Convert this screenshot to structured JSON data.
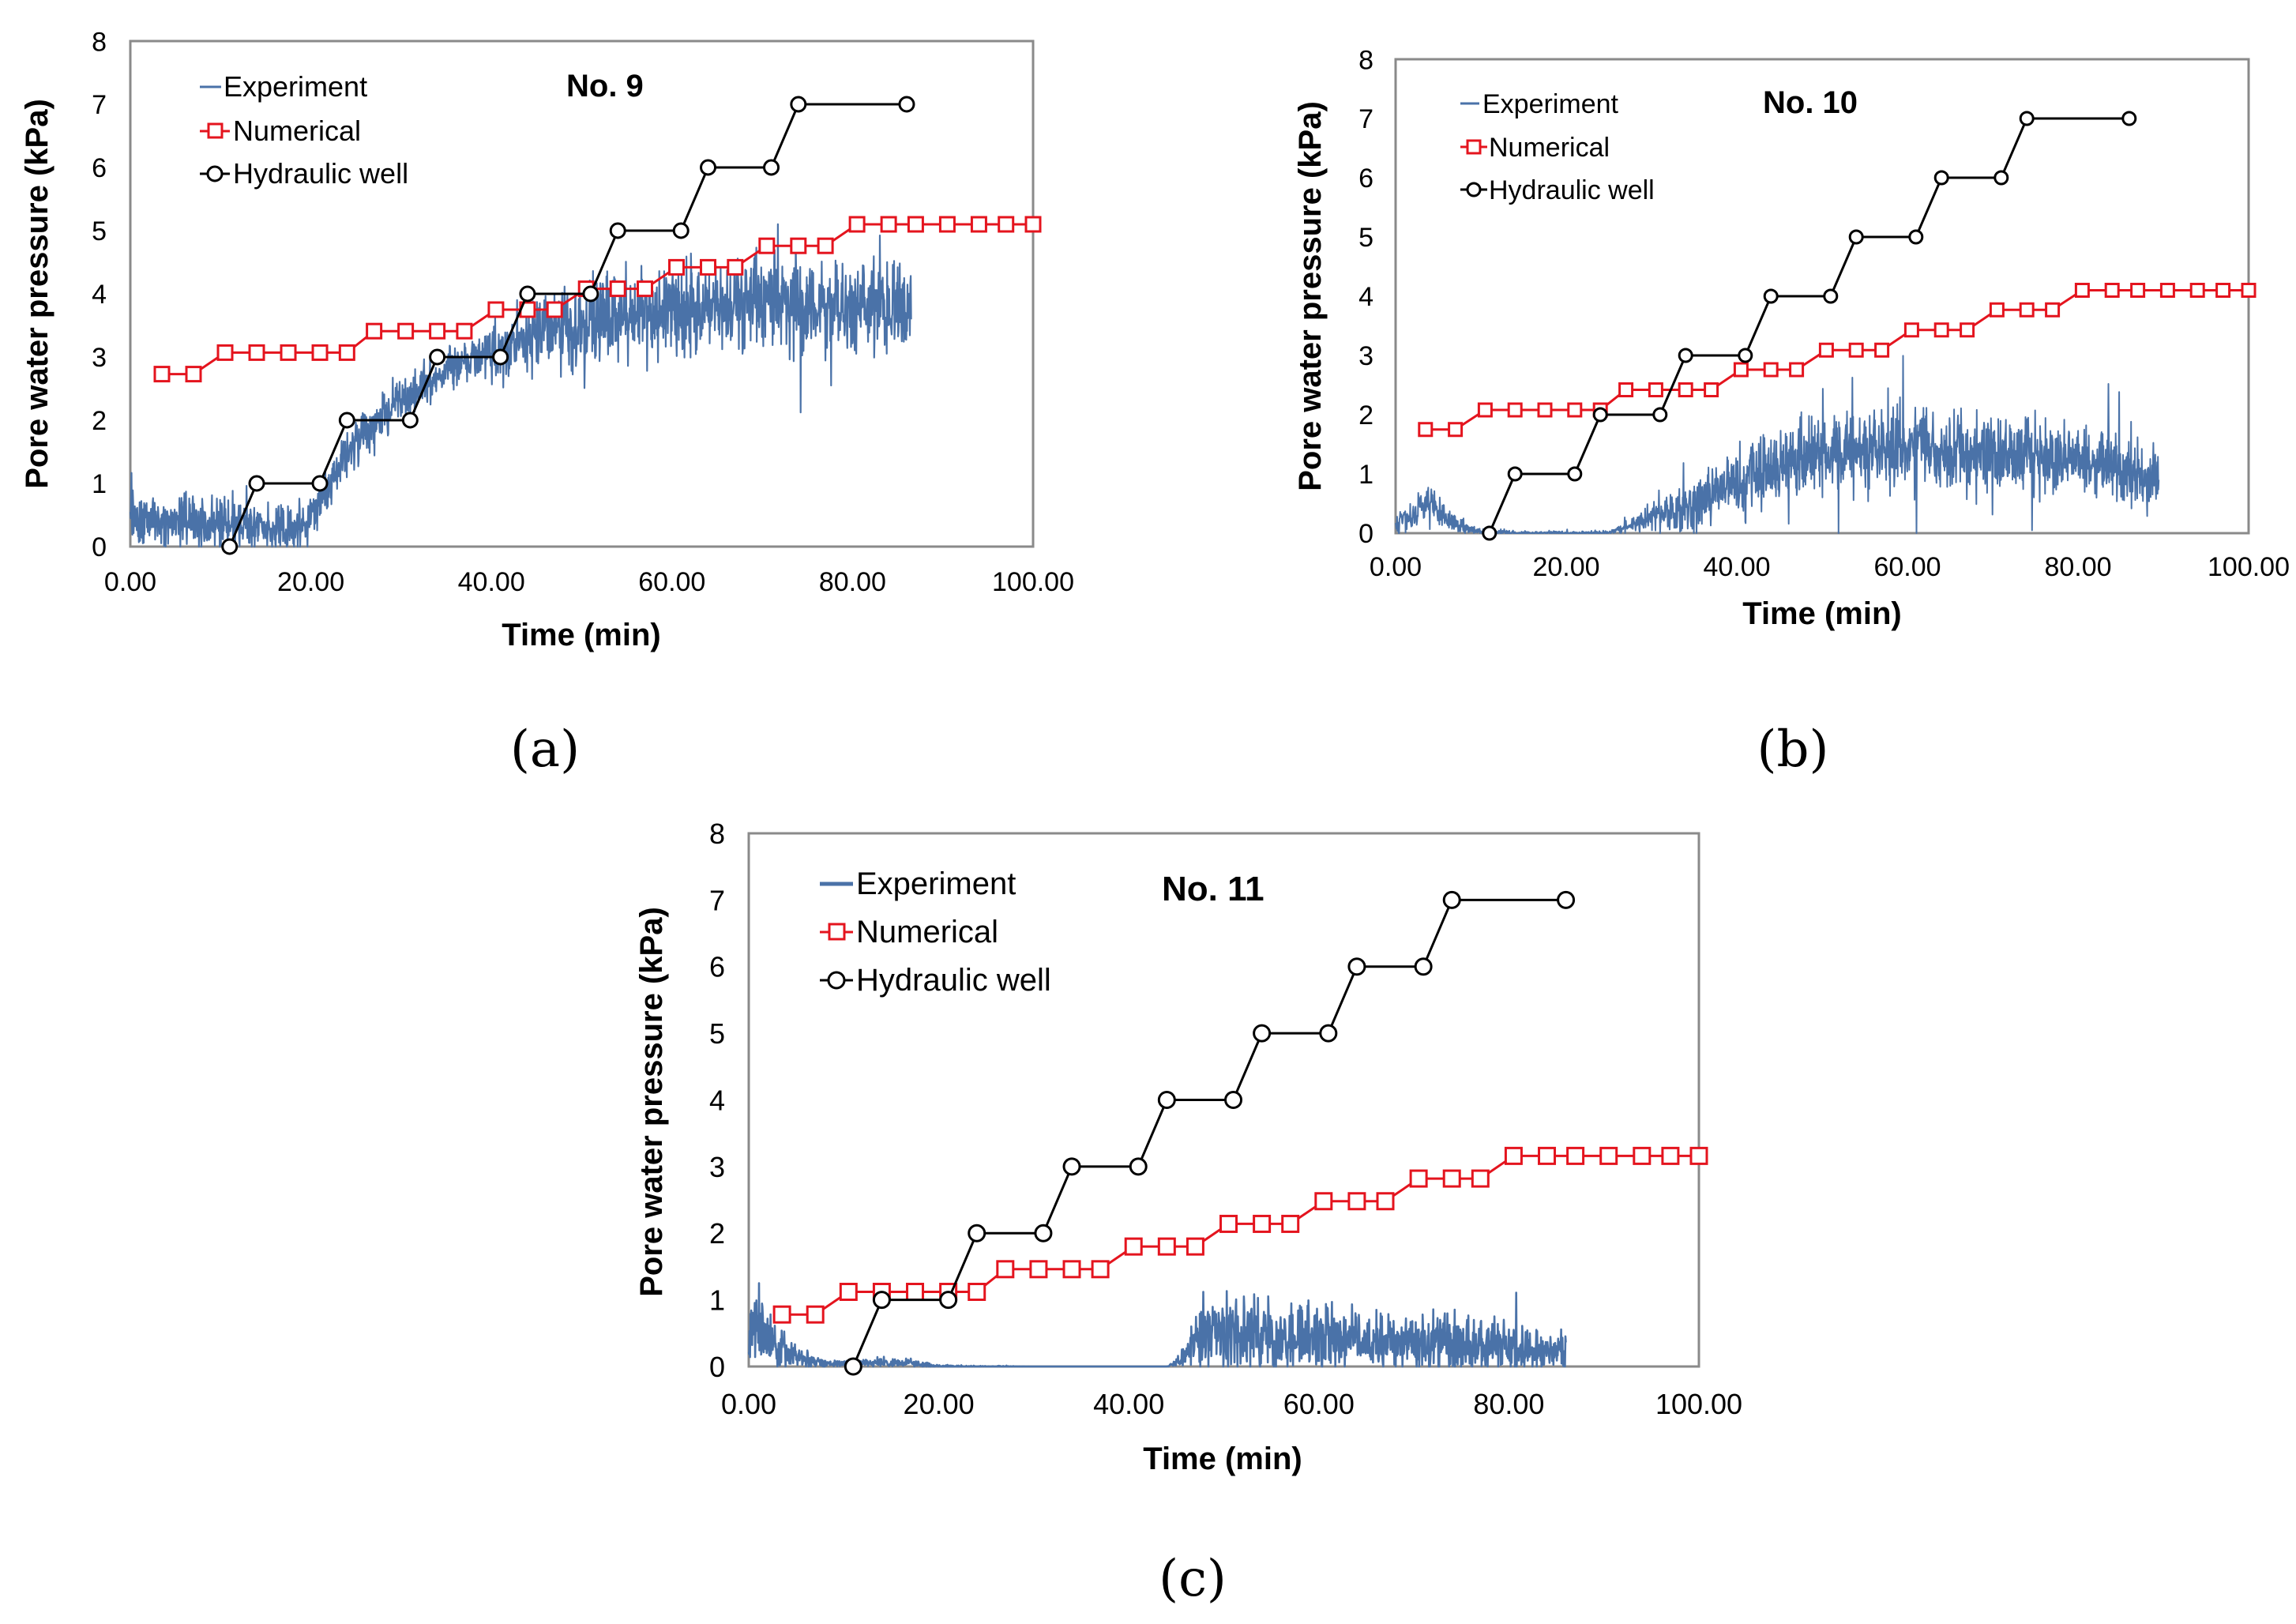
{
  "chart_data": [
    {
      "type": "line",
      "panel_label": "(a)",
      "title": "No. 9",
      "xlabel": "Time (min)",
      "ylabel": "Pore water pressure (kPa)",
      "xlim": [
        0,
        100
      ],
      "ylim": [
        0,
        8
      ],
      "x_ticks": [
        "0.00",
        "20.00",
        "40.00",
        "60.00",
        "80.00",
        "100.00"
      ],
      "y_ticks": [
        "0",
        "1",
        "2",
        "3",
        "4",
        "5",
        "6",
        "7",
        "8"
      ],
      "grid": false,
      "legend_position": "top-left",
      "series": [
        {
          "name": "Experiment",
          "style": "noisy-line",
          "color": "#4a72a8",
          "x": [
            0,
            5,
            10,
            15,
            18,
            20,
            22,
            25,
            28,
            30,
            33,
            35,
            38,
            40,
            43,
            45,
            48,
            50,
            53,
            55,
            58,
            60,
            63,
            65,
            68,
            70,
            73,
            75,
            78,
            80,
            83,
            86.5
          ],
          "y": [
            0.45,
            0.4,
            0.35,
            0.3,
            0.25,
            0.4,
            1.0,
            1.7,
            2.1,
            2.3,
            2.6,
            2.8,
            3.0,
            3.05,
            3.2,
            3.35,
            3.45,
            3.5,
            3.6,
            3.7,
            3.7,
            3.75,
            3.8,
            3.8,
            3.8,
            3.85,
            3.8,
            3.85,
            3.8,
            3.8,
            3.8,
            3.8
          ],
          "amplitude": [
            0.35,
            0.35,
            0.35,
            0.3,
            0.3,
            0.3,
            0.3,
            0.3,
            0.3,
            0.3,
            0.3,
            0.3,
            0.3,
            0.35,
            0.45,
            0.5,
            0.55,
            0.55,
            0.55,
            0.55,
            0.6,
            0.6,
            0.6,
            0.6,
            0.6,
            0.6,
            0.6,
            0.6,
            0.6,
            0.6,
            0.6,
            0.6
          ]
        },
        {
          "name": "Numerical",
          "style": "square-markers",
          "color": "#e4141e",
          "x": [
            3.5,
            7,
            10.5,
            14,
            17.5,
            21,
            24,
            27,
            30.5,
            34,
            37,
            40.5,
            44,
            47,
            50.5,
            54,
            57,
            60.5,
            64,
            67,
            70.5,
            74,
            77,
            80.5,
            84,
            87,
            90.5,
            94,
            97,
            100
          ],
          "y": [
            2.73,
            2.73,
            3.07,
            3.07,
            3.07,
            3.07,
            3.07,
            3.41,
            3.41,
            3.41,
            3.41,
            3.75,
            3.75,
            3.75,
            4.08,
            4.08,
            4.08,
            4.42,
            4.42,
            4.42,
            4.76,
            4.76,
            4.76,
            5.1,
            5.1,
            5.1,
            5.1,
            5.1,
            5.1,
            5.1
          ]
        },
        {
          "name": "Hydraulic well",
          "style": "circle-markers",
          "color": "#000000",
          "x": [
            11,
            14,
            21,
            24,
            31,
            34,
            41,
            44,
            51,
            54,
            61,
            64,
            71,
            74,
            86
          ],
          "y": [
            0,
            1,
            1,
            2,
            2,
            3,
            3,
            4,
            4,
            5,
            5,
            6,
            6,
            7,
            7
          ]
        }
      ]
    },
    {
      "type": "line",
      "panel_label": "(b)",
      "title": "No. 10",
      "xlabel": "Time (min)",
      "ylabel": "Pore water pressure (kPa)",
      "xlim": [
        0,
        100
      ],
      "ylim": [
        0,
        8
      ],
      "x_ticks": [
        "0.00",
        "20.00",
        "40.00",
        "60.00",
        "80.00",
        "100.00"
      ],
      "y_ticks": [
        "0",
        "1",
        "2",
        "3",
        "4",
        "5",
        "6",
        "7",
        "8"
      ],
      "grid": false,
      "legend_position": "top-left",
      "series": [
        {
          "name": "Experiment",
          "style": "noisy-line",
          "color": "#4a72a8",
          "x": [
            0,
            2,
            4,
            6,
            8,
            10,
            15,
            20,
            25,
            26,
            30,
            35,
            40,
            45,
            50,
            55,
            60,
            65,
            70,
            75,
            80,
            85,
            89.5
          ],
          "y": [
            0.2,
            0.3,
            0.6,
            0.2,
            0.1,
            0.02,
            0.0,
            0.0,
            0.0,
            0.05,
            0.25,
            0.5,
            0.85,
            1.15,
            1.3,
            1.4,
            1.4,
            1.35,
            1.35,
            1.3,
            1.25,
            1.1,
            0.9
          ],
          "amplitude": [
            0.2,
            0.2,
            0.3,
            0.15,
            0.1,
            0.05,
            0.03,
            0.03,
            0.03,
            0.05,
            0.2,
            0.35,
            0.45,
            0.5,
            0.55,
            0.55,
            0.55,
            0.55,
            0.55,
            0.55,
            0.5,
            0.45,
            0.35
          ]
        },
        {
          "name": "Numerical",
          "style": "square-markers",
          "color": "#e4141e",
          "x": [
            3.5,
            7,
            10.5,
            14,
            17.5,
            21,
            24,
            27,
            30.5,
            34,
            37,
            40.5,
            44,
            47,
            50.5,
            54,
            57,
            60.5,
            64,
            67,
            70.5,
            74,
            77,
            80.5,
            84,
            87,
            90.5,
            94,
            97,
            100
          ],
          "y": [
            1.75,
            1.75,
            2.08,
            2.08,
            2.08,
            2.08,
            2.08,
            2.42,
            2.42,
            2.42,
            2.42,
            2.76,
            2.76,
            2.76,
            3.09,
            3.09,
            3.09,
            3.43,
            3.43,
            3.43,
            3.77,
            3.77,
            3.77,
            4.1,
            4.1,
            4.1,
            4.1,
            4.1,
            4.1,
            4.1
          ]
        },
        {
          "name": "Hydraulic well",
          "style": "circle-markers",
          "color": "#000000",
          "x": [
            11,
            14,
            21,
            24,
            31,
            34,
            41,
            44,
            51,
            54,
            61,
            64,
            71,
            74,
            86
          ],
          "y": [
            0,
            1,
            1,
            2,
            2,
            3,
            3,
            4,
            4,
            5,
            5,
            6,
            6,
            7,
            7
          ]
        }
      ]
    },
    {
      "type": "line",
      "panel_label": "(c)",
      "title": "No. 11",
      "xlabel": "Time (min)",
      "ylabel": "Pore water pressure (kPa)",
      "xlim": [
        0,
        100
      ],
      "ylim": [
        0,
        8
      ],
      "x_ticks": [
        "0.00",
        "20.00",
        "40.00",
        "60.00",
        "80.00",
        "100.00"
      ],
      "y_ticks": [
        "0",
        "1",
        "2",
        "3",
        "4",
        "5",
        "6",
        "7",
        "8"
      ],
      "grid": false,
      "legend_position": "top-left",
      "series": [
        {
          "name": "Experiment",
          "style": "noisy-line",
          "color": "#4a72a8",
          "x": [
            0,
            1,
            2,
            4,
            6,
            8,
            10,
            14,
            17,
            20,
            30,
            40,
            44,
            45,
            47,
            49,
            51,
            55,
            60,
            65,
            70,
            75,
            80,
            86
          ],
          "y": [
            0.5,
            0.6,
            0.4,
            0.2,
            0.1,
            0.05,
            0.05,
            0.05,
            0.05,
            0.0,
            0.0,
            0.0,
            0.0,
            0.05,
            0.35,
            0.55,
            0.5,
            0.45,
            0.45,
            0.4,
            0.35,
            0.35,
            0.3,
            0.2
          ],
          "amplitude": [
            0.5,
            0.5,
            0.35,
            0.2,
            0.1,
            0.05,
            0.05,
            0.05,
            0.05,
            0.02,
            0.0,
            0.0,
            0.0,
            0.05,
            0.35,
            0.5,
            0.45,
            0.45,
            0.4,
            0.35,
            0.35,
            0.35,
            0.3,
            0.25
          ]
        },
        {
          "name": "Numerical",
          "style": "square-markers",
          "color": "#e4141e",
          "x": [
            3.5,
            7,
            10.5,
            14,
            17.5,
            21,
            24,
            27,
            30.5,
            34,
            37,
            40.5,
            44,
            47,
            50.5,
            54,
            57,
            60.5,
            64,
            67,
            70.5,
            74,
            77,
            80.5,
            84,
            87,
            90.5,
            94,
            97,
            100
          ],
          "y": [
            0.78,
            0.78,
            1.12,
            1.12,
            1.12,
            1.12,
            1.12,
            1.46,
            1.46,
            1.46,
            1.46,
            1.8,
            1.8,
            1.8,
            2.14,
            2.14,
            2.14,
            2.48,
            2.48,
            2.48,
            2.82,
            2.82,
            2.82,
            3.16,
            3.16,
            3.16,
            3.16,
            3.16,
            3.16,
            3.16
          ]
        },
        {
          "name": "Hydraulic well",
          "style": "circle-markers",
          "color": "#000000",
          "x": [
            11,
            14,
            21,
            24,
            31,
            34,
            41,
            44,
            51,
            54,
            61,
            64,
            71,
            74,
            86
          ],
          "y": [
            0,
            1,
            1,
            2,
            2,
            3,
            3,
            4,
            4,
            5,
            5,
            6,
            6,
            7,
            7
          ]
        }
      ]
    }
  ]
}
